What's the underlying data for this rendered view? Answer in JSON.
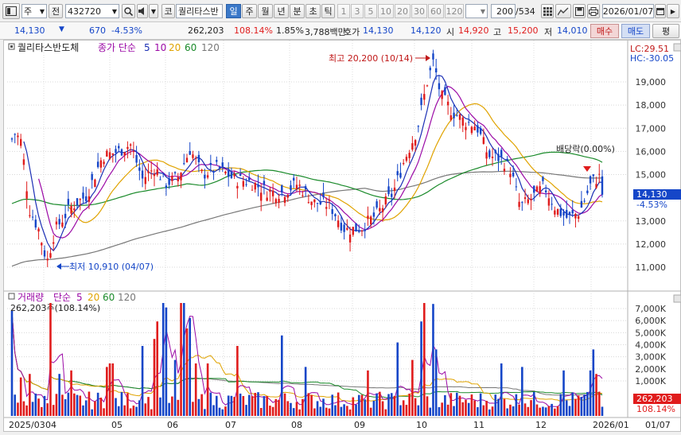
{
  "toolbar": {
    "market_label": "주",
    "prefix_label": "전",
    "stock_code": "432720",
    "stock_name_prefix": "코",
    "stock_name": "퀄리타스반",
    "period_tabs": [
      "일",
      "주",
      "월",
      "년",
      "분",
      "초",
      "틱"
    ],
    "active_period": "일",
    "interval_buttons": [
      "1",
      "3",
      "5",
      "10",
      "20",
      "30",
      "60",
      "120"
    ],
    "count": "200",
    "total": "/534",
    "date": "2026/01/07"
  },
  "quote": {
    "price": "14,130",
    "change_arrow": "▼",
    "change": "670",
    "change_pct": "-4.53%",
    "volume": "262,203",
    "volume_ratio": "108.14%",
    "turnover": "1.85%",
    "amount": "3,788백만",
    "quote_label": "호가",
    "ask": "14,130",
    "bid": "14,120",
    "open_label": "시",
    "open": "14,920",
    "high_label": "고",
    "high": "15,200",
    "low_label": "저",
    "low": "14,010",
    "buy_button": "매수",
    "sell_button": "매도",
    "eval_button": "평"
  },
  "price_pane": {
    "title": "퀄리타스반도체",
    "ma_label": "종가 단순",
    "ma_periods": [
      {
        "period": "5",
        "color": "#1b2fb5"
      },
      {
        "period": "10",
        "color": "#9b0aa6"
      },
      {
        "period": "20",
        "color": "#e0a300"
      },
      {
        "period": "60",
        "color": "#1a8a2a"
      },
      {
        "period": "120",
        "color": "#777777"
      }
    ],
    "axis_ticks": [
      "19,000",
      "18,000",
      "17,000",
      "16,000",
      "15,000",
      "13,000",
      "12,000",
      "11,000"
    ],
    "lc": "LC:29.51",
    "hc": "HC:-30.05",
    "current_price": "14,130",
    "current_pct": "-4.53%",
    "high_annotation": "최고 20,200 (10/14)",
    "low_annotation": "최저 10,910 (04/07)",
    "dividend_annotation": "배당락(0.00%)"
  },
  "volume_pane": {
    "title": "거래량",
    "ma_label": "단순",
    "ma_periods": [
      {
        "period": "5",
        "color": "#9b0aa6"
      },
      {
        "period": "20",
        "color": "#e0a300"
      },
      {
        "period": "60",
        "color": "#1a8a2a"
      },
      {
        "period": "120",
        "color": "#777777"
      }
    ],
    "summary": "262,203주(108.14%)",
    "axis_ticks": [
      "7,000K",
      "6,000K",
      "5,000K",
      "4,000K",
      "3,000K",
      "2,000K",
      "1,000K"
    ],
    "current_volume": "262,203",
    "current_pct": "108.14%"
  },
  "x_axis": {
    "labels": [
      "2025/03",
      "04",
      "05",
      "06",
      "07",
      "08",
      "09",
      "10",
      "11",
      "12",
      "2026/01",
      "01/07"
    ]
  },
  "colors": {
    "up": "#e01c1c",
    "down": "#1546c8",
    "accent": "#3a78c9"
  }
}
